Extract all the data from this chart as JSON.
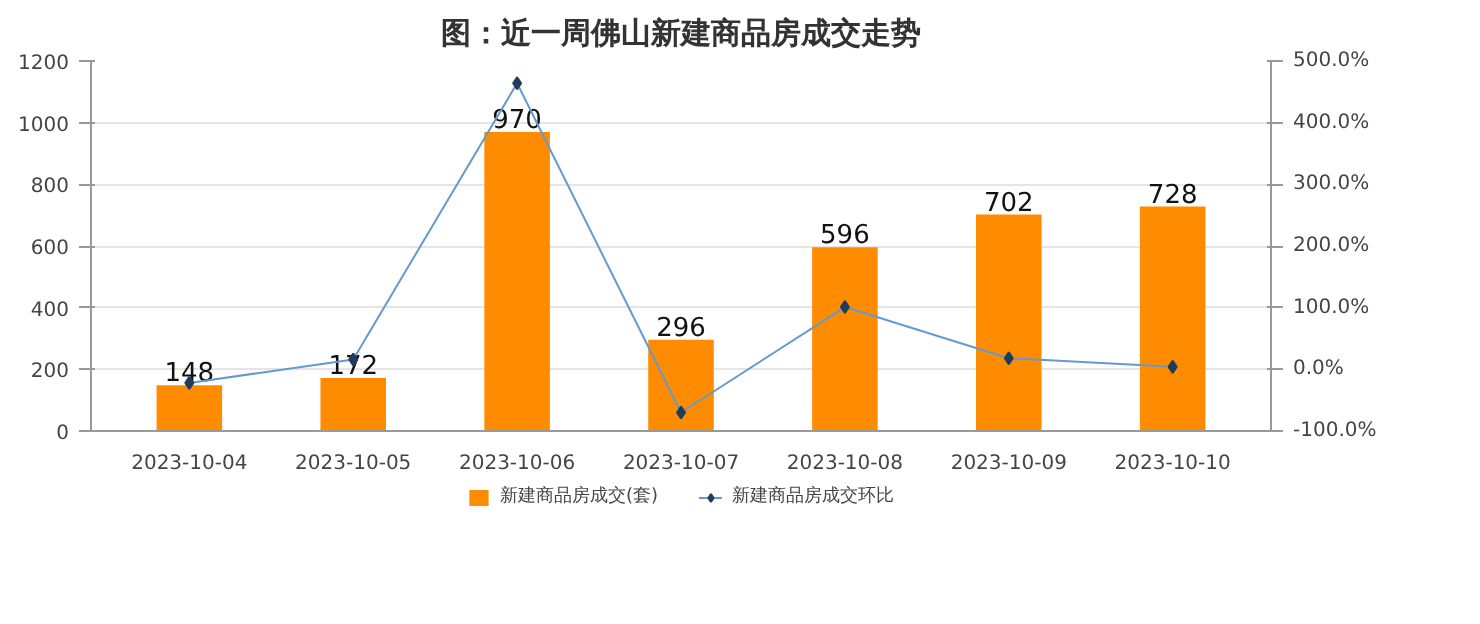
{
  "chart_data": {
    "type": "bar",
    "title": "图：近一周佛山新建商品房成交走势",
    "categories": [
      "2023-10-04",
      "2023-10-05",
      "2023-10-06",
      "2023-10-07",
      "2023-10-08",
      "2023-10-09",
      "2023-10-10"
    ],
    "series": [
      {
        "name": "新建商品房成交(套)",
        "color": "#ff8c00",
        "values": [
          148,
          172,
          970,
          296,
          596,
          702,
          728
        ],
        "data_labels": true
      },
      {
        "name": "新建商品房成交环比",
        "type": "line",
        "axis": "y2",
        "color": "#6699cc",
        "marker": "diamond",
        "values": [
          -22,
          16,
          464,
          -70,
          101,
          18,
          4
        ]
      }
    ],
    "ylim": [
      0,
      1200
    ],
    "yticks": [
      0,
      200,
      400,
      600,
      800,
      1000,
      1200
    ],
    "y2lim": [
      -100,
      500
    ],
    "y2ticks": [
      {
        "value": -100,
        "label": "-100.0%"
      },
      {
        "value": 0,
        "label": "0.0%"
      },
      {
        "value": 100,
        "label": "100.0%"
      },
      {
        "value": 200,
        "label": "200.0%"
      },
      {
        "value": 300,
        "label": "300.0%"
      },
      {
        "value": 400,
        "label": "400.0%"
      },
      {
        "value": 500,
        "label": "500.0%"
      }
    ],
    "grid": "y",
    "legend": "bottom"
  }
}
